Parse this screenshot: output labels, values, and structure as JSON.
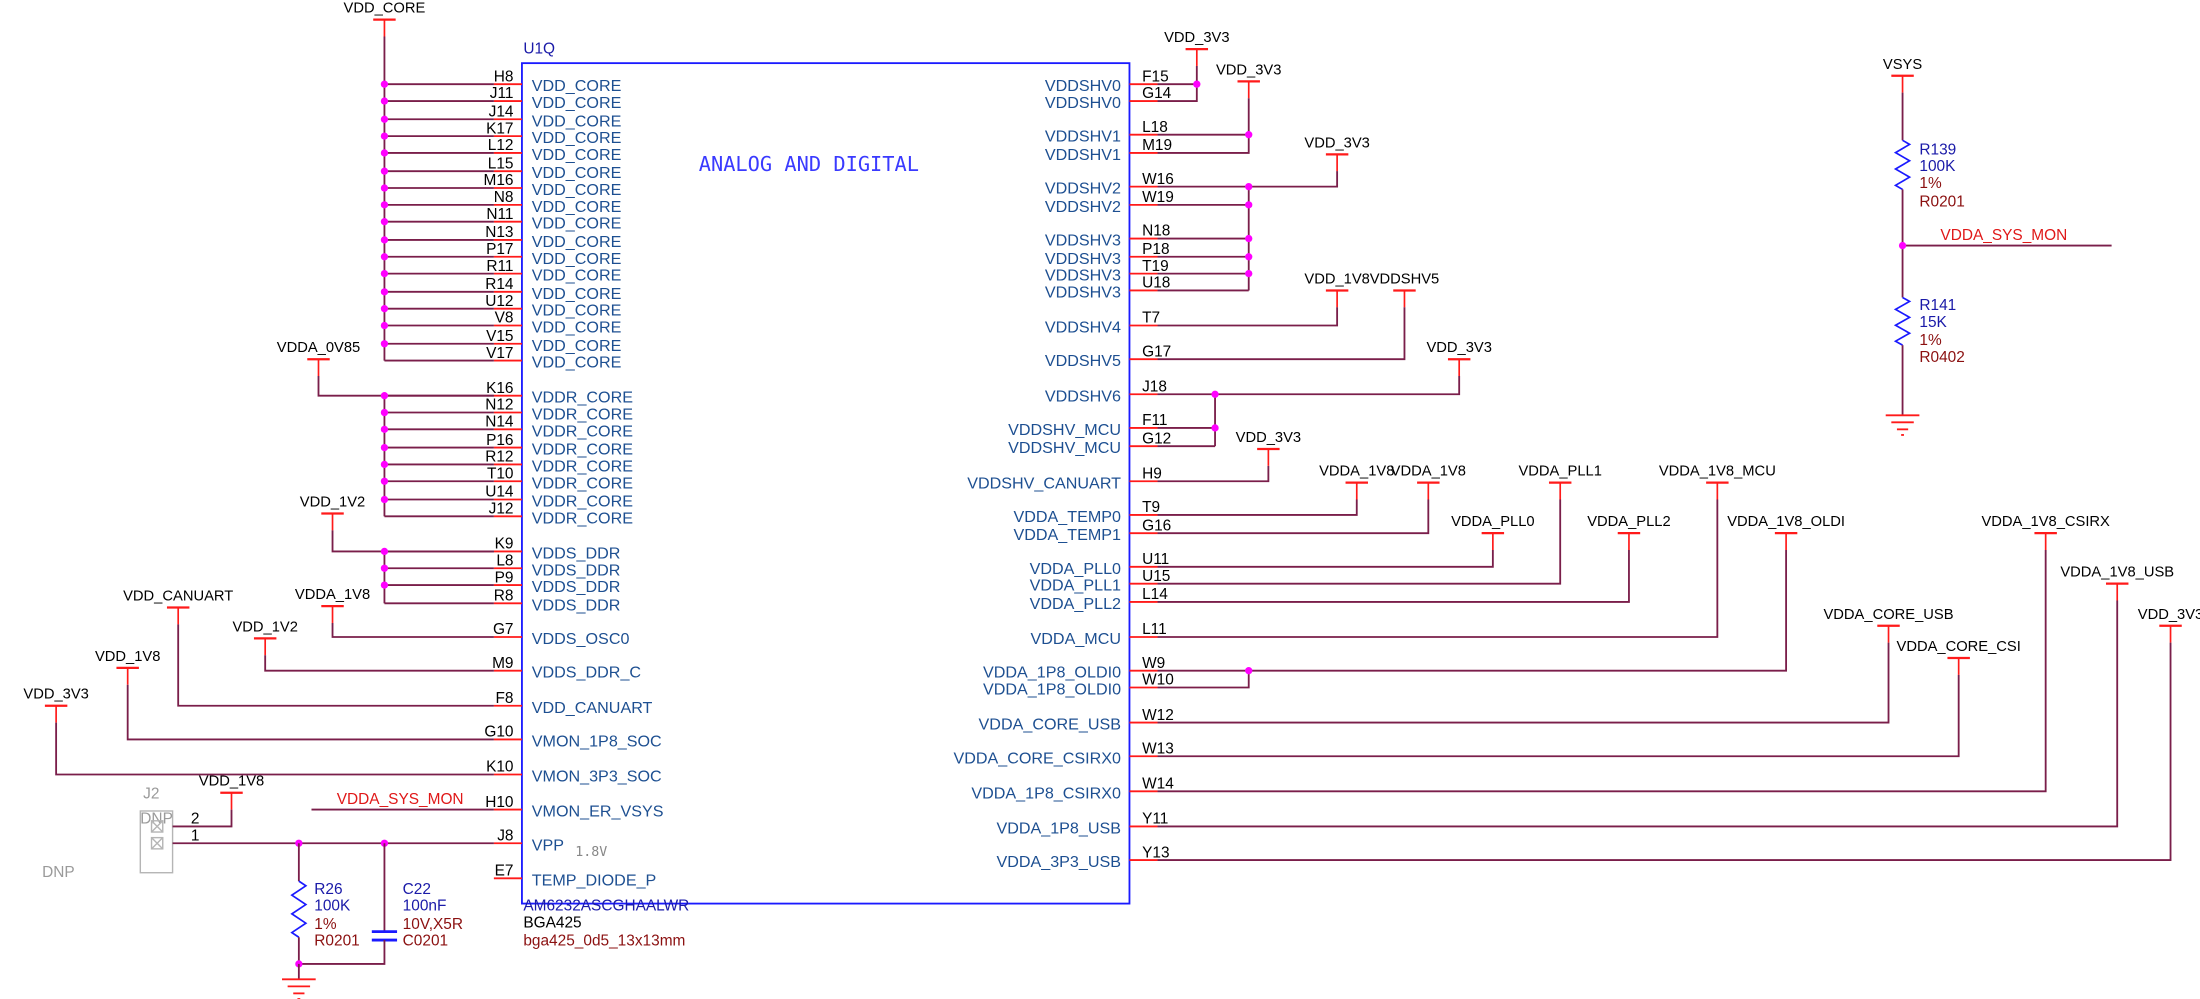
{
  "chip": {
    "ref": "U1Q",
    "title": "ANALOG AND DIGITAL",
    "part_number": "AM6232ASCGHAALWR",
    "package": "BGA425",
    "footprint": "bga425_0d5_13x13mm",
    "vpp_note": "1.8V"
  },
  "left_pins": [
    {
      "pin": "H8",
      "name": "VDD_CORE"
    },
    {
      "pin": "J11",
      "name": "VDD_CORE"
    },
    {
      "pin": "J14",
      "name": "VDD_CORE"
    },
    {
      "pin": "K17",
      "name": "VDD_CORE"
    },
    {
      "pin": "L12",
      "name": "VDD_CORE"
    },
    {
      "pin": "L15",
      "name": "VDD_CORE"
    },
    {
      "pin": "M16",
      "name": "VDD_CORE"
    },
    {
      "pin": "N8",
      "name": "VDD_CORE"
    },
    {
      "pin": "N11",
      "name": "VDD_CORE"
    },
    {
      "pin": "N13",
      "name": "VDD_CORE"
    },
    {
      "pin": "P17",
      "name": "VDD_CORE"
    },
    {
      "pin": "R11",
      "name": "VDD_CORE"
    },
    {
      "pin": "R14",
      "name": "VDD_CORE"
    },
    {
      "pin": "U12",
      "name": "VDD_CORE"
    },
    {
      "pin": "V8",
      "name": "VDD_CORE"
    },
    {
      "pin": "V15",
      "name": "VDD_CORE"
    },
    {
      "pin": "V17",
      "name": "VDD_CORE"
    },
    {
      "pin": "K16",
      "name": "VDDR_CORE"
    },
    {
      "pin": "N12",
      "name": "VDDR_CORE"
    },
    {
      "pin": "N14",
      "name": "VDDR_CORE"
    },
    {
      "pin": "P16",
      "name": "VDDR_CORE"
    },
    {
      "pin": "R12",
      "name": "VDDR_CORE"
    },
    {
      "pin": "T10",
      "name": "VDDR_CORE"
    },
    {
      "pin": "U14",
      "name": "VDDR_CORE"
    },
    {
      "pin": "J12",
      "name": "VDDR_CORE"
    },
    {
      "pin": "K9",
      "name": "VDDS_DDR"
    },
    {
      "pin": "L8",
      "name": "VDDS_DDR"
    },
    {
      "pin": "P9",
      "name": "VDDS_DDR"
    },
    {
      "pin": "R8",
      "name": "VDDS_DDR"
    },
    {
      "pin": "G7",
      "name": "VDDS_OSC0"
    },
    {
      "pin": "M9",
      "name": "VDDS_DDR_C"
    },
    {
      "pin": "F8",
      "name": "VDD_CANUART"
    },
    {
      "pin": "G10",
      "name": "VMON_1P8_SOC"
    },
    {
      "pin": "K10",
      "name": "VMON_3P3_SOC"
    },
    {
      "pin": "H10",
      "name": "VMON_ER_VSYS"
    },
    {
      "pin": "J8",
      "name": "VPP"
    },
    {
      "pin": "E7",
      "name": "TEMP_DIODE_P"
    }
  ],
  "right_pins": [
    {
      "pin": "F15",
      "name": "VDDSHV0"
    },
    {
      "pin": "G14",
      "name": "VDDSHV0"
    },
    {
      "pin": "L18",
      "name": "VDDSHV1"
    },
    {
      "pin": "M19",
      "name": "VDDSHV1"
    },
    {
      "pin": "W16",
      "name": "VDDSHV2"
    },
    {
      "pin": "W19",
      "name": "VDDSHV2"
    },
    {
      "pin": "N18",
      "name": "VDDSHV3"
    },
    {
      "pin": "P18",
      "name": "VDDSHV3"
    },
    {
      "pin": "T19",
      "name": "VDDSHV3"
    },
    {
      "pin": "U18",
      "name": "VDDSHV3"
    },
    {
      "pin": "T7",
      "name": "VDDSHV4"
    },
    {
      "pin": "G17",
      "name": "VDDSHV5"
    },
    {
      "pin": "J18",
      "name": "VDDSHV6"
    },
    {
      "pin": "F11",
      "name": "VDDSHV_MCU"
    },
    {
      "pin": "G12",
      "name": "VDDSHV_MCU"
    },
    {
      "pin": "H9",
      "name": "VDDSHV_CANUART"
    },
    {
      "pin": "T9",
      "name": "VDDA_TEMP0"
    },
    {
      "pin": "G16",
      "name": "VDDA_TEMP1"
    },
    {
      "pin": "U11",
      "name": "VDDA_PLL0"
    },
    {
      "pin": "U15",
      "name": "VDDA_PLL1"
    },
    {
      "pin": "L14",
      "name": "VDDA_PLL2"
    },
    {
      "pin": "L11",
      "name": "VDDA_MCU"
    },
    {
      "pin": "W9",
      "name": "VDDA_1P8_OLDI0"
    },
    {
      "pin": "W10",
      "name": "VDDA_1P8_OLDI0"
    },
    {
      "pin": "W12",
      "name": "VDDA_CORE_USB"
    },
    {
      "pin": "W13",
      "name": "VDDA_CORE_CSIRX0"
    },
    {
      "pin": "W14",
      "name": "VDDA_1P8_CSIRX0"
    },
    {
      "pin": "Y11",
      "name": "VDDA_1P8_USB"
    },
    {
      "pin": "Y13",
      "name": "VDDA_3P3_USB"
    }
  ],
  "power_symbols": [
    "VDD_CORE",
    "VDDA_0V85",
    "VDD_1V2",
    "VDDA_1V8",
    "VDD_1V2",
    "VDD_CANUART",
    "VDD_1V8",
    "VDD_3V3",
    "VDD_1V8",
    "VDD_3V3",
    "VDD_3V3",
    "VDD_3V3",
    "VDD_1V8",
    "VDDSHV5",
    "VDD_3V3",
    "VDD_3V3",
    "VDDA_1V8",
    "VDDA_1V8",
    "VDDA_PLL0",
    "VDDA_PLL1",
    "VDDA_PLL2",
    "VDDA_1V8_MCU",
    "VDDA_1V8_OLDI",
    "VDDA_CORE_USB",
    "VDDA_CORE_CSI",
    "VDDA_1V8_CSIRX",
    "VDDA_1V8_USB",
    "VDD_3V3",
    "VSYS"
  ],
  "net_labels": {
    "vmon_input": "VDDA_SYS_MON",
    "divider_output": "VDDA_SYS_MON"
  },
  "components": {
    "r26": {
      "ref": "R26",
      "value": "100K",
      "tolerance": "1%",
      "footprint": "R0201"
    },
    "c22": {
      "ref": "C22",
      "value": "100nF",
      "rating": "10V,X5R",
      "footprint": "C0201"
    },
    "r139": {
      "ref": "R139",
      "value": "100K",
      "tolerance": "1%",
      "footprint": "R0201"
    },
    "r141": {
      "ref": "R141",
      "value": "15K",
      "tolerance": "1%",
      "footprint": "R0402"
    },
    "j2": {
      "ref": "J2",
      "box_label": "DNP",
      "pin2": "2",
      "pin1": "1",
      "note": "DNP"
    }
  },
  "colors": {
    "wire": "#7a1e4a",
    "pin": "#ff1a1a",
    "body": "#1a1aff",
    "junction": "#ff00ff",
    "pin_name": "#1d4f91"
  }
}
